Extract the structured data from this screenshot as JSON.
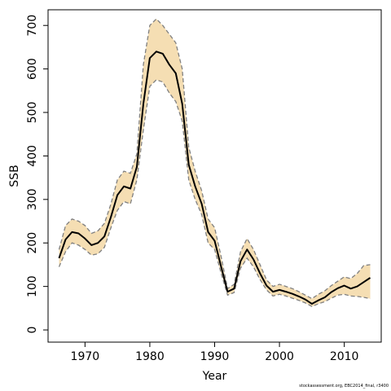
{
  "chart_data": {
    "type": "line",
    "title": "",
    "xlabel": "Year",
    "ylabel": "SSB",
    "xlim": [
      1964.3,
      2015.7
    ],
    "ylim": [
      -28,
      736
    ],
    "xticks": [
      1970,
      1980,
      1990,
      2000,
      2010
    ],
    "yticks": [
      0,
      100,
      200,
      300,
      400,
      500,
      600,
      700
    ],
    "grid": false,
    "legend": "none",
    "band_color": "#f5deb3",
    "estimate_color": "#000000",
    "ci_color": "#808080",
    "x": [
      1966,
      1967,
      1968,
      1969,
      1970,
      1971,
      1972,
      1973,
      1974,
      1975,
      1976,
      1977,
      1978,
      1979,
      1980,
      1981,
      1982,
      1983,
      1984,
      1985,
      1986,
      1987,
      1988,
      1989,
      1990,
      1991,
      1992,
      1993,
      1994,
      1995,
      1996,
      1997,
      1998,
      1999,
      2000,
      2001,
      2002,
      2003,
      2004,
      2005,
      2006,
      2007,
      2008,
      2009,
      2010,
      2011,
      2012,
      2013,
      2014
    ],
    "series": [
      {
        "role": "estimate",
        "values": [
          165,
          208,
          225,
          222,
          210,
          195,
          200,
          215,
          260,
          310,
          330,
          325,
          375,
          520,
          625,
          640,
          635,
          610,
          590,
          520,
          380,
          330,
          290,
          225,
          205,
          145,
          88,
          95,
          158,
          185,
          162,
          130,
          102,
          88,
          92,
          88,
          83,
          77,
          70,
          60,
          68,
          75,
          87,
          96,
          102,
          95,
          100,
          110,
          120
        ]
      },
      {
        "role": "upper",
        "values": [
          185,
          240,
          255,
          250,
          240,
          222,
          228,
          245,
          290,
          345,
          365,
          360,
          405,
          610,
          700,
          715,
          700,
          680,
          660,
          600,
          420,
          365,
          320,
          255,
          235,
          168,
          95,
          105,
          180,
          210,
          185,
          150,
          115,
          100,
          105,
          100,
          95,
          88,
          80,
          72,
          82,
          90,
          102,
          112,
          122,
          118,
          130,
          148,
          150
        ]
      },
      {
        "role": "lower",
        "values": [
          145,
          180,
          200,
          195,
          185,
          172,
          175,
          190,
          235,
          275,
          295,
          290,
          345,
          460,
          560,
          575,
          570,
          545,
          525,
          480,
          345,
          300,
          265,
          200,
          185,
          130,
          80,
          86,
          142,
          165,
          145,
          116,
          92,
          78,
          82,
          78,
          73,
          68,
          62,
          54,
          60,
          65,
          73,
          80,
          82,
          78,
          77,
          75,
          72
        ]
      }
    ],
    "credit": "stockassessment.org, EBC2014_final, r3400"
  }
}
